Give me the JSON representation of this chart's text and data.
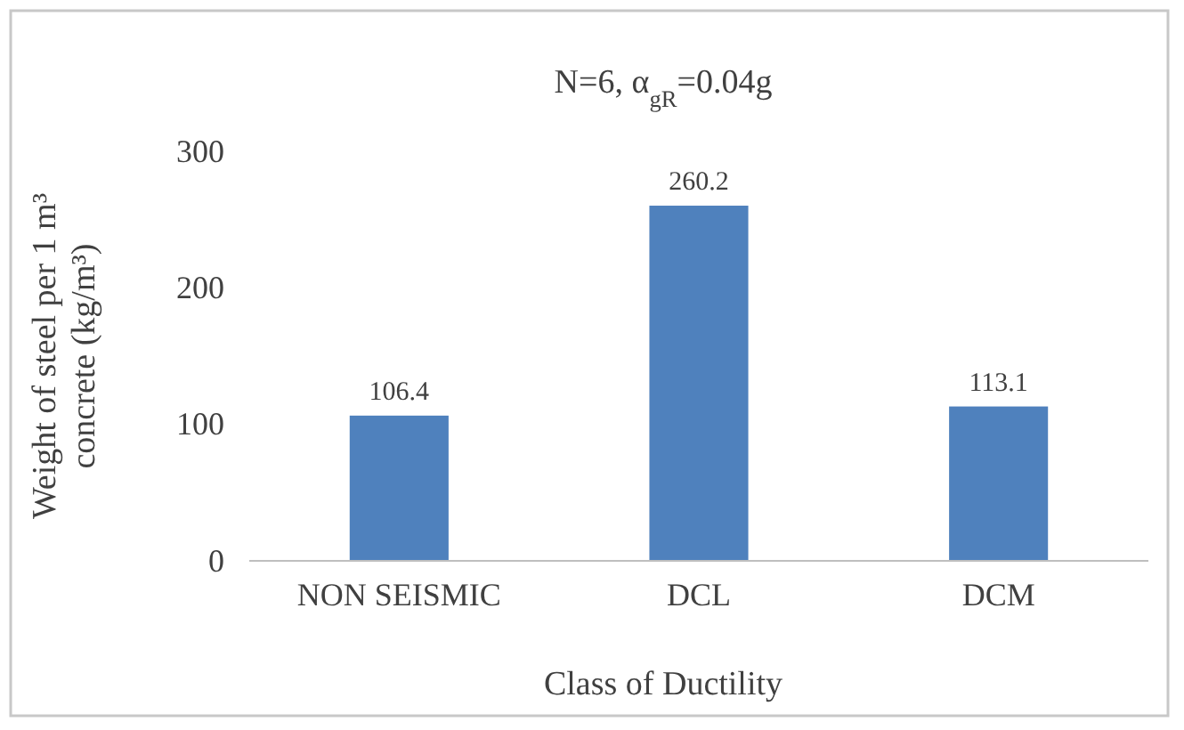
{
  "chart_data": {
    "type": "bar",
    "title": "N=6, α$_{gR}$=0.04g",
    "xlabel": "Class of Ductility",
    "ylabel": "Weight of steel per 1 m³ concrete (kg/m³)",
    "categories": [
      "NON SEISMIC",
      "DCL",
      "DCM"
    ],
    "values": [
      106.4,
      260.2,
      113.1
    ],
    "color": "#4f81bd",
    "ylim": [
      0,
      300
    ],
    "yticks": [
      0,
      100,
      200,
      300
    ],
    "data_labels": true
  }
}
